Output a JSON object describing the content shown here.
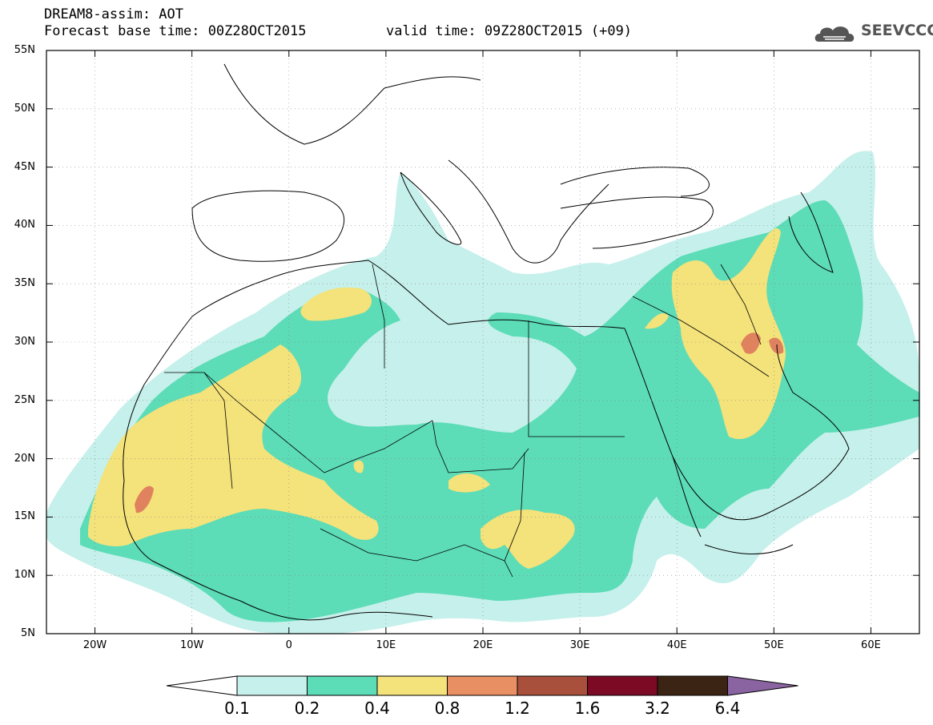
{
  "header": {
    "line1": "DREAM8-assim: AOT",
    "line2_left": "Forecast base time: 00Z28OCT2015",
    "line2_right": "valid time: 09Z28OCT2015 (+09)",
    "logo_text": "SEEVCCC"
  },
  "map": {
    "lat_labels": [
      "55N",
      "50N",
      "45N",
      "40N",
      "35N",
      "30N",
      "25N",
      "20N",
      "15N",
      "10N",
      "5N"
    ],
    "lon_labels": [
      "20W",
      "10W",
      "0",
      "10E",
      "20E",
      "30E",
      "40E",
      "50E",
      "60E"
    ],
    "lon_range": [
      -25,
      65
    ],
    "lat_range": [
      5,
      55
    ]
  },
  "colorbar": {
    "labels": [
      "0.1",
      "0.2",
      "0.4",
      "0.8",
      "1.2",
      "1.6",
      "3.2",
      "6.4"
    ],
    "colors": [
      "#ffffff",
      "#c6f0eb",
      "#5cdcb7",
      "#f4e27a",
      "#e88f64",
      "#a8503c",
      "#7c0a24",
      "#3c2414",
      "#8a64a0"
    ]
  },
  "field_colors": {
    "light": "#c6f0eb",
    "medium": "#5cdcb7",
    "yellow": "#f4e27a",
    "orange": "#e0825e"
  }
}
